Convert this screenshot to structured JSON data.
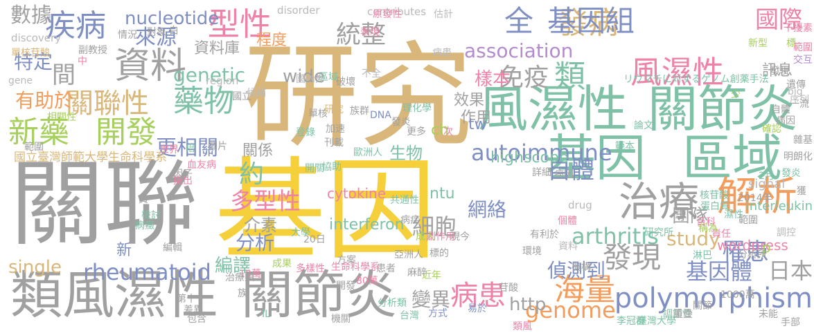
{
  "palette": {
    "gold": "#f5d03a",
    "gray": "#a0a0a0",
    "sand": "#d9b77a",
    "teal": "#7ec1a6",
    "pink": "#ee82a8",
    "orange": "#f39c5b",
    "blue": "#7f8fc4",
    "green": "#a6cf5b",
    "purple": "#b38ccf",
    "lgray": "#b9b9b9"
  },
  "words": [
    "研究",
    "基因",
    "關聯",
    "類風濕性",
    "關節炎",
    "風濕性",
    "關節炎",
    "基因",
    "區域",
    "類",
    "風濕性",
    "解析",
    "治療",
    "資料",
    "polymorphism",
    "疾病",
    "型性",
    "發病",
    "全",
    "基因組",
    "國際",
    "數據",
    "藥物",
    "新藥",
    "開發",
    "關聯性",
    "海量",
    "發現",
    "病患",
    "統整",
    "免疫",
    "autoimmune",
    "association",
    "genetic",
    "nucleotide",
    "arthritis",
    "rheumatoid",
    "genome",
    "single",
    "study",
    "來源",
    "資料庫",
    "樣本",
    "效果",
    "作用",
    "自體",
    "罹患",
    "團隊",
    "基因體",
    "日本",
    "偵測到",
    "編譯",
    "分析",
    "介素",
    "多型性",
    "約",
    "細胞",
    "網絡",
    "變異",
    "更相關",
    "有助於",
    "特定",
    "間",
    "程度",
    "wide",
    "訊息",
    "http",
    "ntu",
    "tw",
    "ch",
    "highscope",
    "wordpress",
    "生物",
    "關係",
    "新",
    "p",
    "interferon",
    "interleukin",
    "cytokine",
    "signal",
    "discovery",
    "disorder",
    "contributes",
    "region",
    "drug",
    "gene",
    "big",
    "2014年",
    "20日",
    "2月",
    "10萬",
    "80萬",
    "1000萬",
    "國立臺灣師範大學生命科學系",
    "リウマチに対するゲノム創薬手法",
    "單核苷酸",
    "副教授",
    "情況",
    "對象",
    "原發性",
    "估計",
    "表現",
    "中",
    "白",
    "不全",
    "區域",
    "單核",
    "國內外",
    "破壞",
    "族群",
    "登錄",
    "刊載",
    "加速",
    "歐洲人",
    "發炎",
    "DNA",
    "理化學",
    "更多",
    "次",
    "獲",
    "提出",
    "血友病",
    "因子",
    "圖片",
    "倍",
    "世界",
    "檢討",
    "病癥",
    "員",
    "成果",
    "開關",
    "協助",
    "大學",
    "共通性",
    "方案",
    "生命科學系",
    "多樣性",
    "近年",
    "開發",
    "第十",
    "差異",
    "包含",
    "台灣",
    "方式",
    "易於",
    "機關",
    "標的",
    "亞洲人",
    "分析類",
    "麻醉",
    "苷酸",
    "詳細",
    "病因",
    "個體",
    "副作用",
    "現今",
    "成人",
    "病症",
    "患者",
    "機構",
    "臺灣大學",
    "李冠群",
    "調節性",
    "重疊",
    "類風",
    "關節",
    "未能",
    "手部",
    "研究所",
    "百科",
    "責任",
    "蛋白質",
    "稱為",
    "有利於",
    "環境",
    "資料",
    "分析所",
    "核苷酸",
    "淋巴",
    "濕性",
    "遺傳",
    "範本",
    "論文",
    "雜基",
    "發炎",
    "明朗化",
    "干擾素",
    "範圍",
    "序列",
    "自體",
    "少",
    "確認",
    "標",
    "病因",
    "發現",
    "交互",
    "一流",
    "調控",
    "範圍",
    "相關性",
    "國立",
    "編輯",
    "治療類",
    "IL",
    "族",
    "範圍",
    "病患",
    "新型",
    "候補",
    "研究"
  ]
}
